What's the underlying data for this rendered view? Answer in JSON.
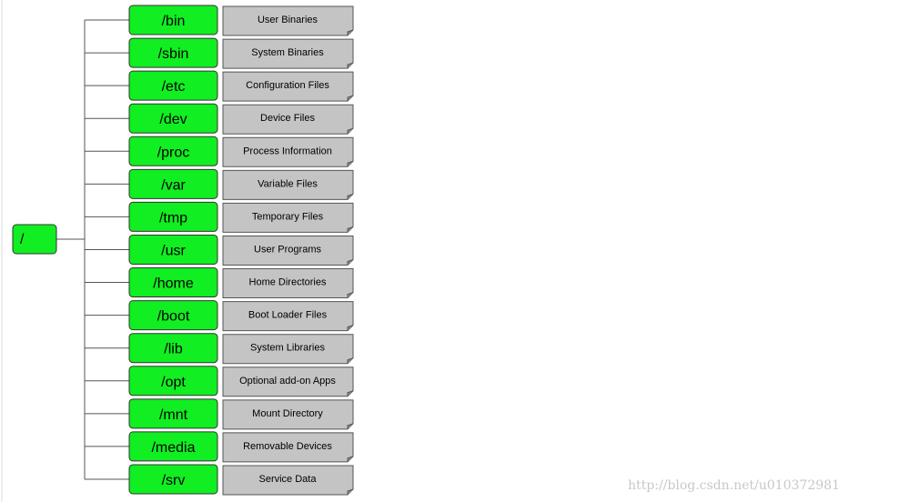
{
  "root": {
    "label": "/"
  },
  "nodes": [
    {
      "label": "/bin",
      "description": "User Binaries"
    },
    {
      "label": "/sbin",
      "description": "System Binaries"
    },
    {
      "label": "/etc",
      "description": "Configuration Files"
    },
    {
      "label": "/dev",
      "description": "Device Files"
    },
    {
      "label": "/proc",
      "description": "Process Information"
    },
    {
      "label": "/var",
      "description": "Variable Files"
    },
    {
      "label": "/tmp",
      "description": "Temporary Files"
    },
    {
      "label": "/usr",
      "description": "User Programs"
    },
    {
      "label": "/home",
      "description": "Home Directories"
    },
    {
      "label": "/boot",
      "description": "Boot Loader Files"
    },
    {
      "label": "/lib",
      "description": "System Libraries"
    },
    {
      "label": "/opt",
      "description": "Optional add-on Apps"
    },
    {
      "label": "/mnt",
      "description": "Mount Directory"
    },
    {
      "label": "/media",
      "description": "Removable Devices"
    },
    {
      "label": "/srv",
      "description": "Service Data"
    }
  ],
  "watermark": "http://blog.csdn.net/u010372981"
}
